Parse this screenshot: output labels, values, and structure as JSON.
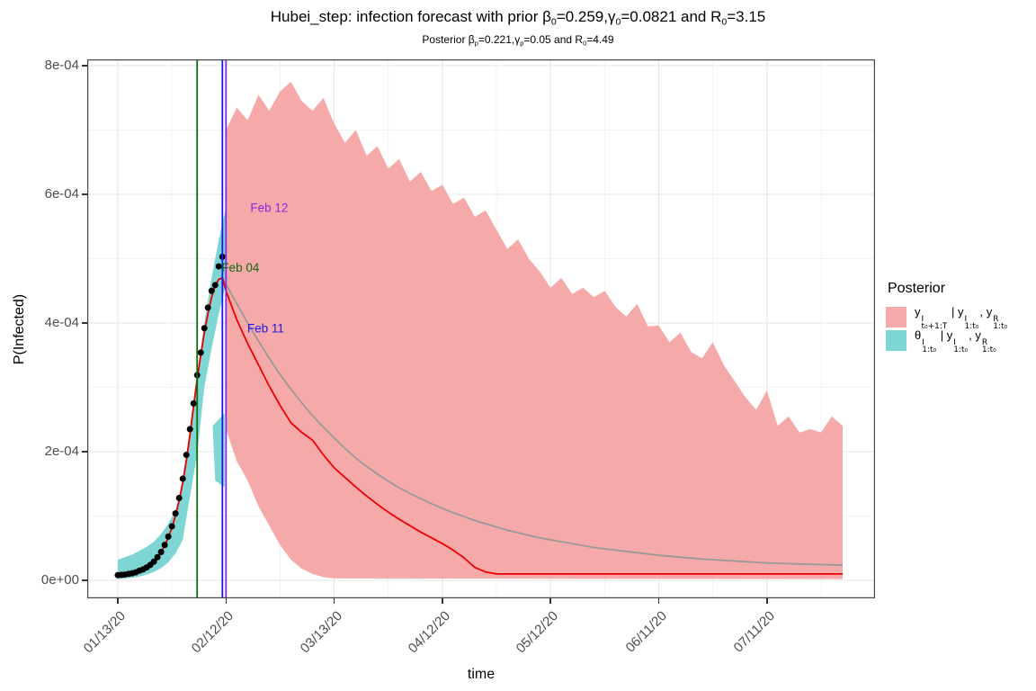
{
  "chart_data": {
    "type": "area",
    "units": "y values expressed in 1e-4 probability; x in days since 01/13/20",
    "title_parts": [
      {
        "t": "Hubei_step: infection forecast with prior β"
      },
      {
        "sub": "0"
      },
      {
        "t": "=0.259,γ"
      },
      {
        "sub": "0"
      },
      {
        "t": "=0.0821 and R"
      },
      {
        "sub": "0"
      },
      {
        "t": "=3.15"
      }
    ],
    "subtitle_parts": [
      {
        "t": "Posterior β"
      },
      {
        "sub": "p"
      },
      {
        "t": "=0.221,γ"
      },
      {
        "sub": "p"
      },
      {
        "t": "=0.05 and R"
      },
      {
        "sub": "0"
      },
      {
        "t": "=4.49"
      }
    ],
    "xlabel": "time",
    "ylabel": "P(Infected)",
    "x_axis": {
      "day0_date": "01/13/20",
      "tick_days": [
        0,
        30,
        60,
        90,
        120,
        150,
        180
      ],
      "tick_labels": [
        "01/13/20",
        "02/12/20",
        "03/13/20",
        "04/12/20",
        "05/12/20",
        "06/11/20",
        "07/11/20"
      ],
      "minor_days": [
        15,
        45,
        75,
        105,
        135,
        165,
        195
      ]
    },
    "y_axis": {
      "tick_values": [
        0,
        2,
        4,
        6,
        8
      ],
      "tick_labels": [
        "0e+00",
        "2e-04",
        "4e-04",
        "6e-04",
        "8e-04"
      ],
      "minor_values": [
        1,
        3,
        5,
        7
      ]
    },
    "series": {
      "observed_points": {
        "name": "observed infected proportion (dots)",
        "color": "#000000",
        "days": [
          0,
          1,
          2,
          3,
          4,
          5,
          6,
          7,
          8,
          9,
          10,
          11,
          12,
          13,
          14,
          15,
          16,
          17,
          18,
          19,
          20,
          21,
          22,
          23,
          24,
          25,
          26,
          27,
          28,
          29
        ],
        "values": [
          0.08,
          0.085,
          0.09,
          0.1,
          0.11,
          0.125,
          0.15,
          0.17,
          0.2,
          0.24,
          0.29,
          0.36,
          0.44,
          0.55,
          0.68,
          0.84,
          1.04,
          1.28,
          1.58,
          1.95,
          2.35,
          2.75,
          3.19,
          3.54,
          3.92,
          4.24,
          4.5,
          4.59,
          4.88,
          5.03
        ]
      },
      "fit_rise": {
        "name": "fitted mean through observation window (shared by red and gray lines)",
        "days": [
          0,
          1,
          2,
          3,
          4,
          5,
          6,
          7,
          8,
          9,
          10,
          11,
          12,
          13,
          14,
          15,
          16,
          17,
          18,
          19,
          20,
          21,
          22,
          23,
          24,
          25,
          26,
          27,
          28,
          29
        ],
        "values": [
          0.08,
          0.085,
          0.09,
          0.1,
          0.11,
          0.125,
          0.148,
          0.17,
          0.2,
          0.24,
          0.29,
          0.355,
          0.435,
          0.54,
          0.665,
          0.82,
          1.01,
          1.24,
          1.52,
          1.86,
          2.26,
          2.7,
          3.12,
          3.5,
          3.85,
          4.15,
          4.4,
          4.58,
          4.68,
          4.7
        ]
      },
      "theta_band": {
        "name": "posterior credible band of latent prevalence θ (teal)",
        "fill": "#7DD6D4",
        "days": [
          0,
          2,
          4,
          6,
          8,
          10,
          12,
          14,
          16,
          18,
          20,
          22,
          24,
          26,
          28,
          30
        ],
        "upper": [
          0.32,
          0.36,
          0.4,
          0.46,
          0.52,
          0.6,
          0.72,
          0.88,
          1.1,
          1.45,
          2.3,
          3.15,
          4.0,
          4.7,
          5.3,
          5.8
        ],
        "lower": [
          0.02,
          0.03,
          0.04,
          0.06,
          0.09,
          0.13,
          0.19,
          0.28,
          0.42,
          0.63,
          1.3,
          1.96,
          3.0,
          3.6,
          4.15,
          4.6
        ]
      },
      "theta_band_lobe": {
        "name": "detached lower lobe of teal band near t0",
        "fill": "#7DD6D4",
        "points_day_value": [
          [
            26.3,
            2.4
          ],
          [
            29.6,
            2.6
          ],
          [
            29.6,
            1.45
          ],
          [
            27.0,
            1.55
          ]
        ]
      },
      "forecast_band": {
        "name": "forecast credible band (pink)",
        "fill": "#F6A9A9",
        "upper_days_start": 30,
        "upper_days_step": 3,
        "upper": [
          7.0,
          7.35,
          7.15,
          7.55,
          7.3,
          7.6,
          7.75,
          7.45,
          7.3,
          7.5,
          7.1,
          6.8,
          7.0,
          6.6,
          6.75,
          6.4,
          6.55,
          6.2,
          6.35,
          6.05,
          6.15,
          5.85,
          5.95,
          5.65,
          5.75,
          5.45,
          5.15,
          5.3,
          5.0,
          4.8,
          4.55,
          4.7,
          4.45,
          4.55,
          4.4,
          4.5,
          4.25,
          4.1,
          4.3,
          3.95,
          3.96,
          3.7,
          3.85,
          3.55,
          3.45,
          3.7,
          3.35,
          3.1,
          2.85,
          2.65,
          2.95,
          2.4,
          2.55,
          2.3,
          2.35,
          2.3,
          2.55,
          2.4
        ],
        "lower_days": [
          30,
          33,
          36,
          39,
          42,
          45,
          48,
          51,
          54,
          57,
          60,
          201
        ],
        "lower": [
          2.35,
          1.85,
          1.55,
          1.15,
          0.85,
          0.55,
          0.32,
          0.18,
          0.1,
          0.05,
          0.03,
          0.02
        ]
      },
      "posterior_median": {
        "name": "posterior median forecast (red line)",
        "color": "#EE0000",
        "days": [
          30,
          33,
          36,
          39,
          42,
          45,
          48,
          51,
          54,
          57,
          60,
          63,
          66,
          69,
          72,
          75,
          78,
          81,
          84,
          87,
          90,
          93,
          96,
          99,
          102,
          105,
          110,
          201
        ],
        "values": [
          4.5,
          4.05,
          3.68,
          3.35,
          3.02,
          2.72,
          2.45,
          2.3,
          2.18,
          1.95,
          1.75,
          1.6,
          1.45,
          1.31,
          1.18,
          1.06,
          0.95,
          0.85,
          0.75,
          0.66,
          0.57,
          0.47,
          0.35,
          0.2,
          0.13,
          0.1,
          0.1,
          0.1
        ]
      },
      "prior_mean": {
        "name": "prior mean trajectory (gray line)",
        "color": "#999999",
        "days_start": 30,
        "days_step": 3,
        "values": [
          4.6,
          4.3,
          4.0,
          3.72,
          3.45,
          3.2,
          2.97,
          2.76,
          2.56,
          2.38,
          2.21,
          2.05,
          1.9,
          1.77,
          1.65,
          1.54,
          1.44,
          1.35,
          1.27,
          1.19,
          1.12,
          1.05,
          0.99,
          0.93,
          0.88,
          0.83,
          0.78,
          0.74,
          0.7,
          0.66,
          0.63,
          0.6,
          0.57,
          0.54,
          0.51,
          0.49,
          0.47,
          0.45,
          0.43,
          0.41,
          0.39,
          0.375,
          0.36,
          0.345,
          0.33,
          0.32,
          0.31,
          0.3,
          0.29,
          0.28,
          0.27,
          0.265,
          0.26,
          0.255,
          0.25,
          0.245,
          0.24,
          0.235
        ]
      }
    },
    "vlines": [
      {
        "label": "Feb 04",
        "day": 22,
        "color": "#0E6B0E"
      },
      {
        "label": "Feb 11",
        "day": 29,
        "color": "#1A1AE6"
      },
      {
        "label": "Feb 12",
        "day": 30,
        "color": "#8A2BE2"
      }
    ],
    "annotations": [
      {
        "text": "Feb 12",
        "day": 42,
        "value": 5.8,
        "color": "#8A2BE2"
      },
      {
        "text": "Feb 04",
        "day": 34,
        "value": 4.87,
        "color": "#0E6B0E"
      },
      {
        "text": "Feb 11",
        "day": 41,
        "value": 3.92,
        "color": "#1A1AE6"
      }
    ],
    "legend": {
      "title": "Posterior",
      "entries": [
        {
          "swatch": "#F6A9A9",
          "parts": [
            {
              "base": "y",
              "sup": "I",
              "sub": "t₀+1:T"
            },
            {
              "t": " | "
            },
            {
              "base": "y",
              "sup": "I",
              "sub": "1:t₀"
            },
            {
              "t": ", "
            },
            {
              "base": "y",
              "sup": "R",
              "sub": "1:t₀"
            }
          ]
        },
        {
          "swatch": "#7DD6D4",
          "parts": [
            {
              "base": "θ",
              "sup": "I",
              "sub": "1:t₀"
            },
            {
              "t": " | "
            },
            {
              "base": "y",
              "sup": "I",
              "sub": "1:t₀"
            },
            {
              "t": ", "
            },
            {
              "base": "y",
              "sup": "R",
              "sub": "1:t₀"
            }
          ]
        }
      ]
    },
    "style": {
      "grid_major": "#E5E5E5",
      "grid_minor": "#F0F0F0",
      "panel_border": "#474747",
      "tick_label_color": "#4d4d4d"
    }
  }
}
